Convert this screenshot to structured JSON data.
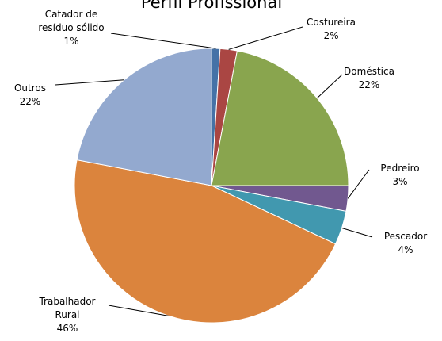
{
  "chart_data": {
    "type": "pie",
    "title": "Perfil Profissional",
    "categories": [
      "Catador de resíduo sólido",
      "Costureira",
      "Doméstica",
      "Pedreiro",
      "Pescador",
      "Trabalhador Rural",
      "Outros"
    ],
    "values": [
      1,
      2,
      22,
      3,
      4,
      46,
      22
    ],
    "value_labels": [
      "1%",
      "2%",
      "22%",
      "3%",
      "4%",
      "46%",
      "22%"
    ],
    "colors": [
      "#4572a7",
      "#aa4643",
      "#89a54e",
      "#71588f",
      "#4198af",
      "#db843d",
      "#93a9cf"
    ]
  }
}
